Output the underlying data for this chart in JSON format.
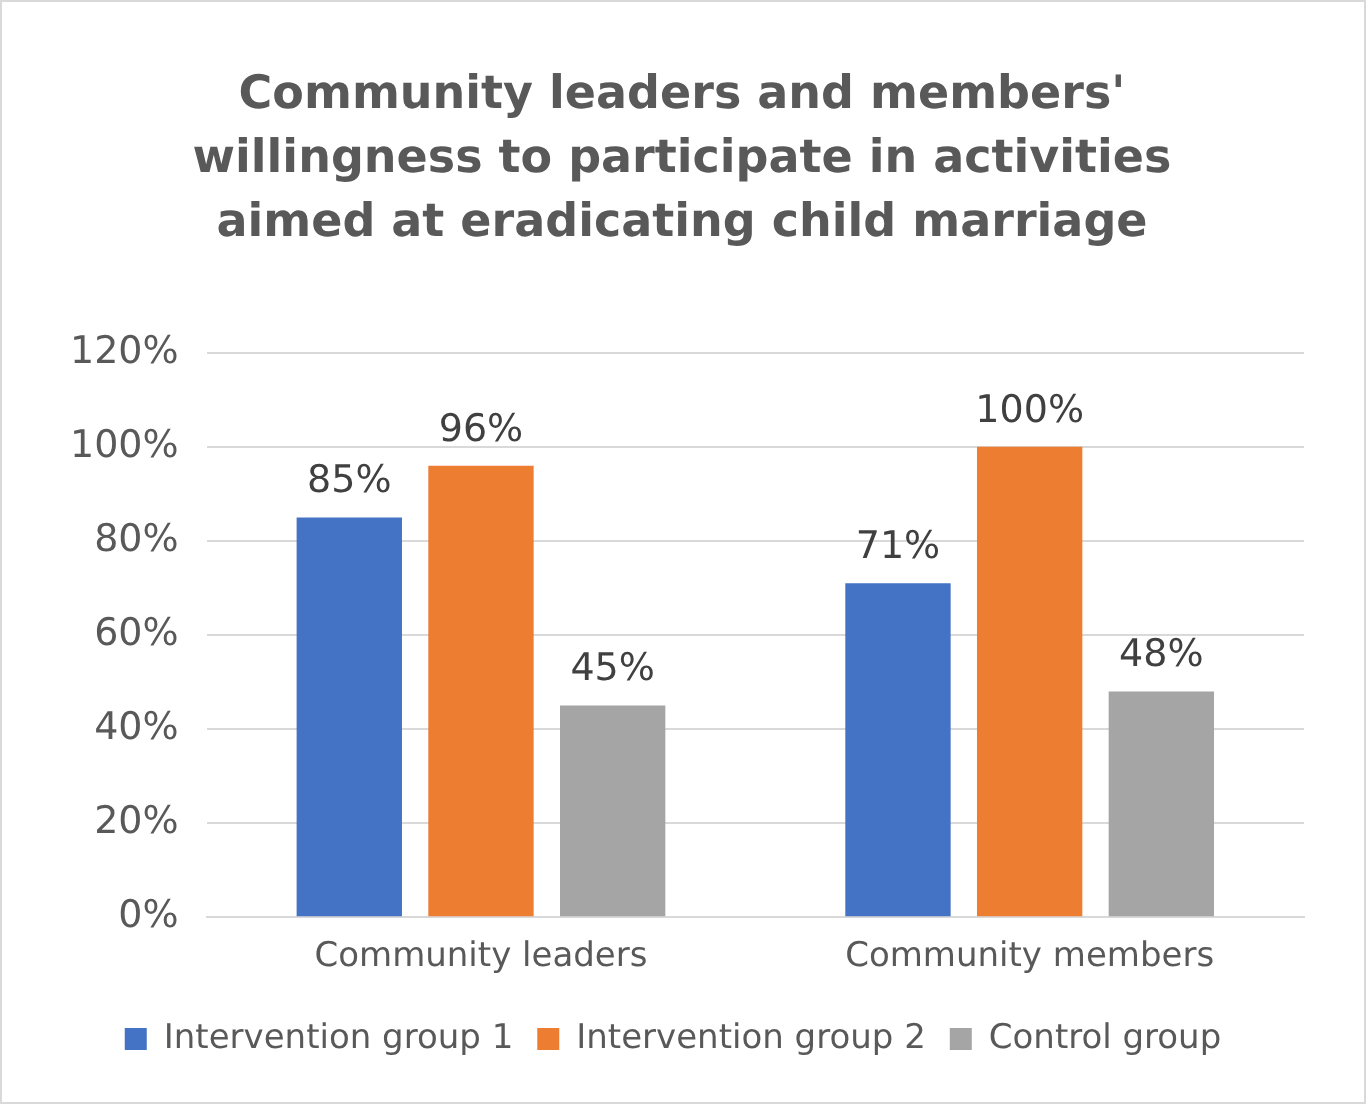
{
  "chart_data": {
    "type": "bar",
    "title": "Community leaders and members' willingness to participate in activities aimed at eradicating child marriage",
    "categories": [
      "Community leaders",
      "Community members"
    ],
    "series": [
      {
        "name": "Intervention group 1",
        "color": "#4472c4",
        "values": [
          85,
          71
        ],
        "value_labels": [
          "85%",
          "71%"
        ]
      },
      {
        "name": "Intervention group 2",
        "color": "#ed7d31",
        "values": [
          96,
          100
        ],
        "value_labels": [
          "96%",
          "100%"
        ]
      },
      {
        "name": "Control group",
        "color": "#a5a5a5",
        "values": [
          45,
          48
        ],
        "value_labels": [
          "45%",
          "48%"
        ]
      }
    ],
    "ylim": [
      0,
      120
    ],
    "yticks": [
      {
        "value": 0,
        "label": "0%"
      },
      {
        "value": 20,
        "label": "20%"
      },
      {
        "value": 40,
        "label": "40%"
      },
      {
        "value": 60,
        "label": "60%"
      },
      {
        "value": 80,
        "label": "80%"
      },
      {
        "value": 100,
        "label": "100%"
      },
      {
        "value": 120,
        "label": "120%"
      }
    ],
    "grid": "y",
    "legend": "bottom"
  }
}
